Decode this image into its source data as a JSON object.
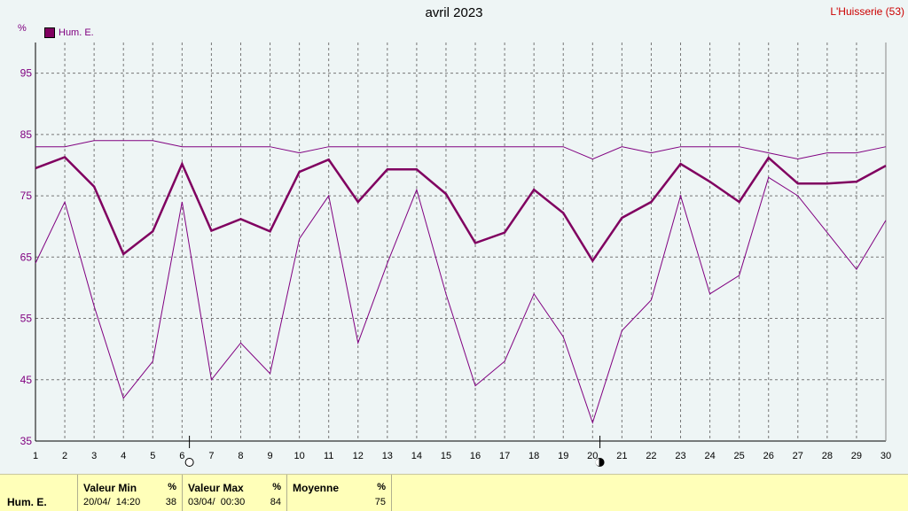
{
  "title": "avril 2023",
  "station": "L'Huisserie (53)",
  "unit": "%",
  "legend_label": "Hum. E.",
  "colors": {
    "mean": "#800060",
    "minmax": "#800080",
    "grid": "#777777",
    "background": "#eef5f5",
    "panel": "#ffffb9"
  },
  "stats": {
    "series_name": "Hum. E.",
    "min_header": "Valeur Min",
    "min_unit": "%",
    "min_time": "20/04/  14:20",
    "min_value": "38",
    "max_header": "Valeur Max",
    "max_unit": "%",
    "max_time": "03/04/  00:30",
    "max_value": "84",
    "avg_header": "Moyenne",
    "avg_unit": "%",
    "avg_value": "75"
  },
  "markers": [
    {
      "day": 6,
      "style": "open"
    },
    {
      "day": 20,
      "style": "half"
    }
  ],
  "chart_data": {
    "type": "line",
    "x": [
      1,
      2,
      3,
      4,
      5,
      6,
      7,
      8,
      9,
      10,
      11,
      12,
      13,
      14,
      15,
      16,
      17,
      18,
      19,
      20,
      21,
      22,
      23,
      24,
      25,
      26,
      27,
      28,
      29,
      30
    ],
    "ylim": [
      35,
      100
    ],
    "yticks": [
      35,
      45,
      55,
      65,
      75,
      85,
      95
    ],
    "grid": true,
    "legend_placement": "top-left",
    "series": [
      {
        "name": "Hum. E.",
        "role": "mean",
        "values": [
          79.5,
          81.3,
          76.5,
          65.5,
          69.2,
          80.2,
          69.3,
          71.2,
          69.2,
          78.9,
          80.9,
          74.0,
          79.3,
          79.3,
          75.3,
          67.3,
          69.0,
          76.0,
          72.2,
          64.4,
          71.4,
          74.0,
          80.2,
          77.3,
          74.0,
          81.2,
          77.0,
          77.0,
          77.3,
          79.9
        ]
      },
      {
        "role": "max",
        "values": [
          83,
          83,
          84,
          84,
          84,
          83,
          83,
          83,
          83,
          82,
          83,
          83,
          83,
          83,
          83,
          83,
          83,
          83,
          83,
          81,
          83,
          82,
          83,
          83,
          83,
          82,
          81,
          82,
          82,
          83
        ]
      },
      {
        "role": "min",
        "values": [
          64,
          74,
          57,
          42,
          48,
          74,
          45,
          51,
          46,
          68,
          75,
          51,
          64,
          76,
          59,
          44,
          48,
          59,
          52,
          38,
          53,
          58,
          75,
          59,
          62,
          78,
          75,
          69,
          63,
          71
        ]
      }
    ]
  }
}
